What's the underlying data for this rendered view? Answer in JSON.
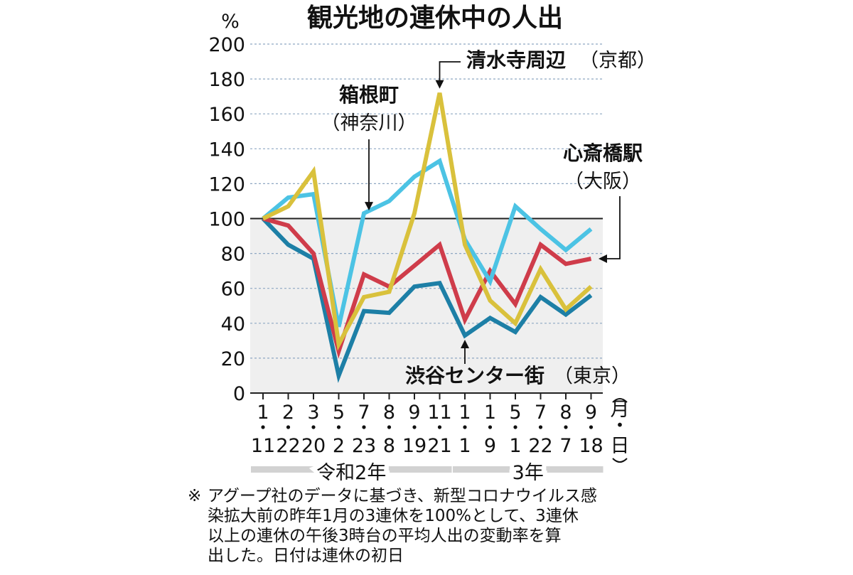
{
  "chart_data": {
    "type": "line",
    "title": "観光地の連休中の人出",
    "ylabel": "%",
    "ylim": [
      0,
      200
    ],
    "yticks": [
      0,
      20,
      40,
      60,
      80,
      100,
      120,
      140,
      160,
      180,
      200
    ],
    "x_months": [
      "1",
      "2",
      "3",
      "5",
      "7",
      "8",
      "9",
      "11",
      "1",
      "1",
      "5",
      "7",
      "8",
      "9"
    ],
    "x_days": [
      "11",
      "22",
      "20",
      "2",
      "23",
      "8",
      "19",
      "21",
      "1",
      "9",
      "1",
      "22",
      "7",
      "18"
    ],
    "x_unit": [
      "月",
      "・",
      "日"
    ],
    "year_groups": [
      {
        "label": "令和2年",
        "start": 0,
        "end": 7
      },
      {
        "label": "3年",
        "start": 8,
        "end": 13
      }
    ],
    "series": [
      {
        "name": "清水寺周辺",
        "region": "（京都）",
        "color": "#d9c13c",
        "values": [
          100,
          107,
          127,
          28,
          55,
          58,
          103,
          172,
          85,
          53,
          40,
          71,
          48,
          61
        ]
      },
      {
        "name": "箱根町",
        "region": "（神奈川）",
        "color": "#4cc3e4",
        "values": [
          100,
          112,
          114,
          38,
          103,
          110,
          124,
          133,
          88,
          64,
          107,
          94,
          82,
          94
        ]
      },
      {
        "name": "心斎橋駅",
        "region": "（大阪）",
        "color": "#cf3c4a",
        "values": [
          100,
          96,
          80,
          24,
          68,
          61,
          73,
          85,
          42,
          70,
          51,
          85,
          74,
          77
        ]
      },
      {
        "name": "渋谷センター街",
        "region": "（東京）",
        "color": "#1d7fa6",
        "values": [
          100,
          85,
          77,
          10,
          47,
          46,
          61,
          63,
          33,
          43,
          35,
          55,
          45,
          56
        ]
      }
    ],
    "baseline": 100,
    "footnote": [
      "※",
      "アグープ社のデータに基づき、新型コロナウイルス感",
      "染拡大前の昨年1月の3連休を100%として、3連休",
      "以上の連休の午後3時台の平均人出の変動率を算",
      "出した。日付は連休の初日"
    ]
  }
}
